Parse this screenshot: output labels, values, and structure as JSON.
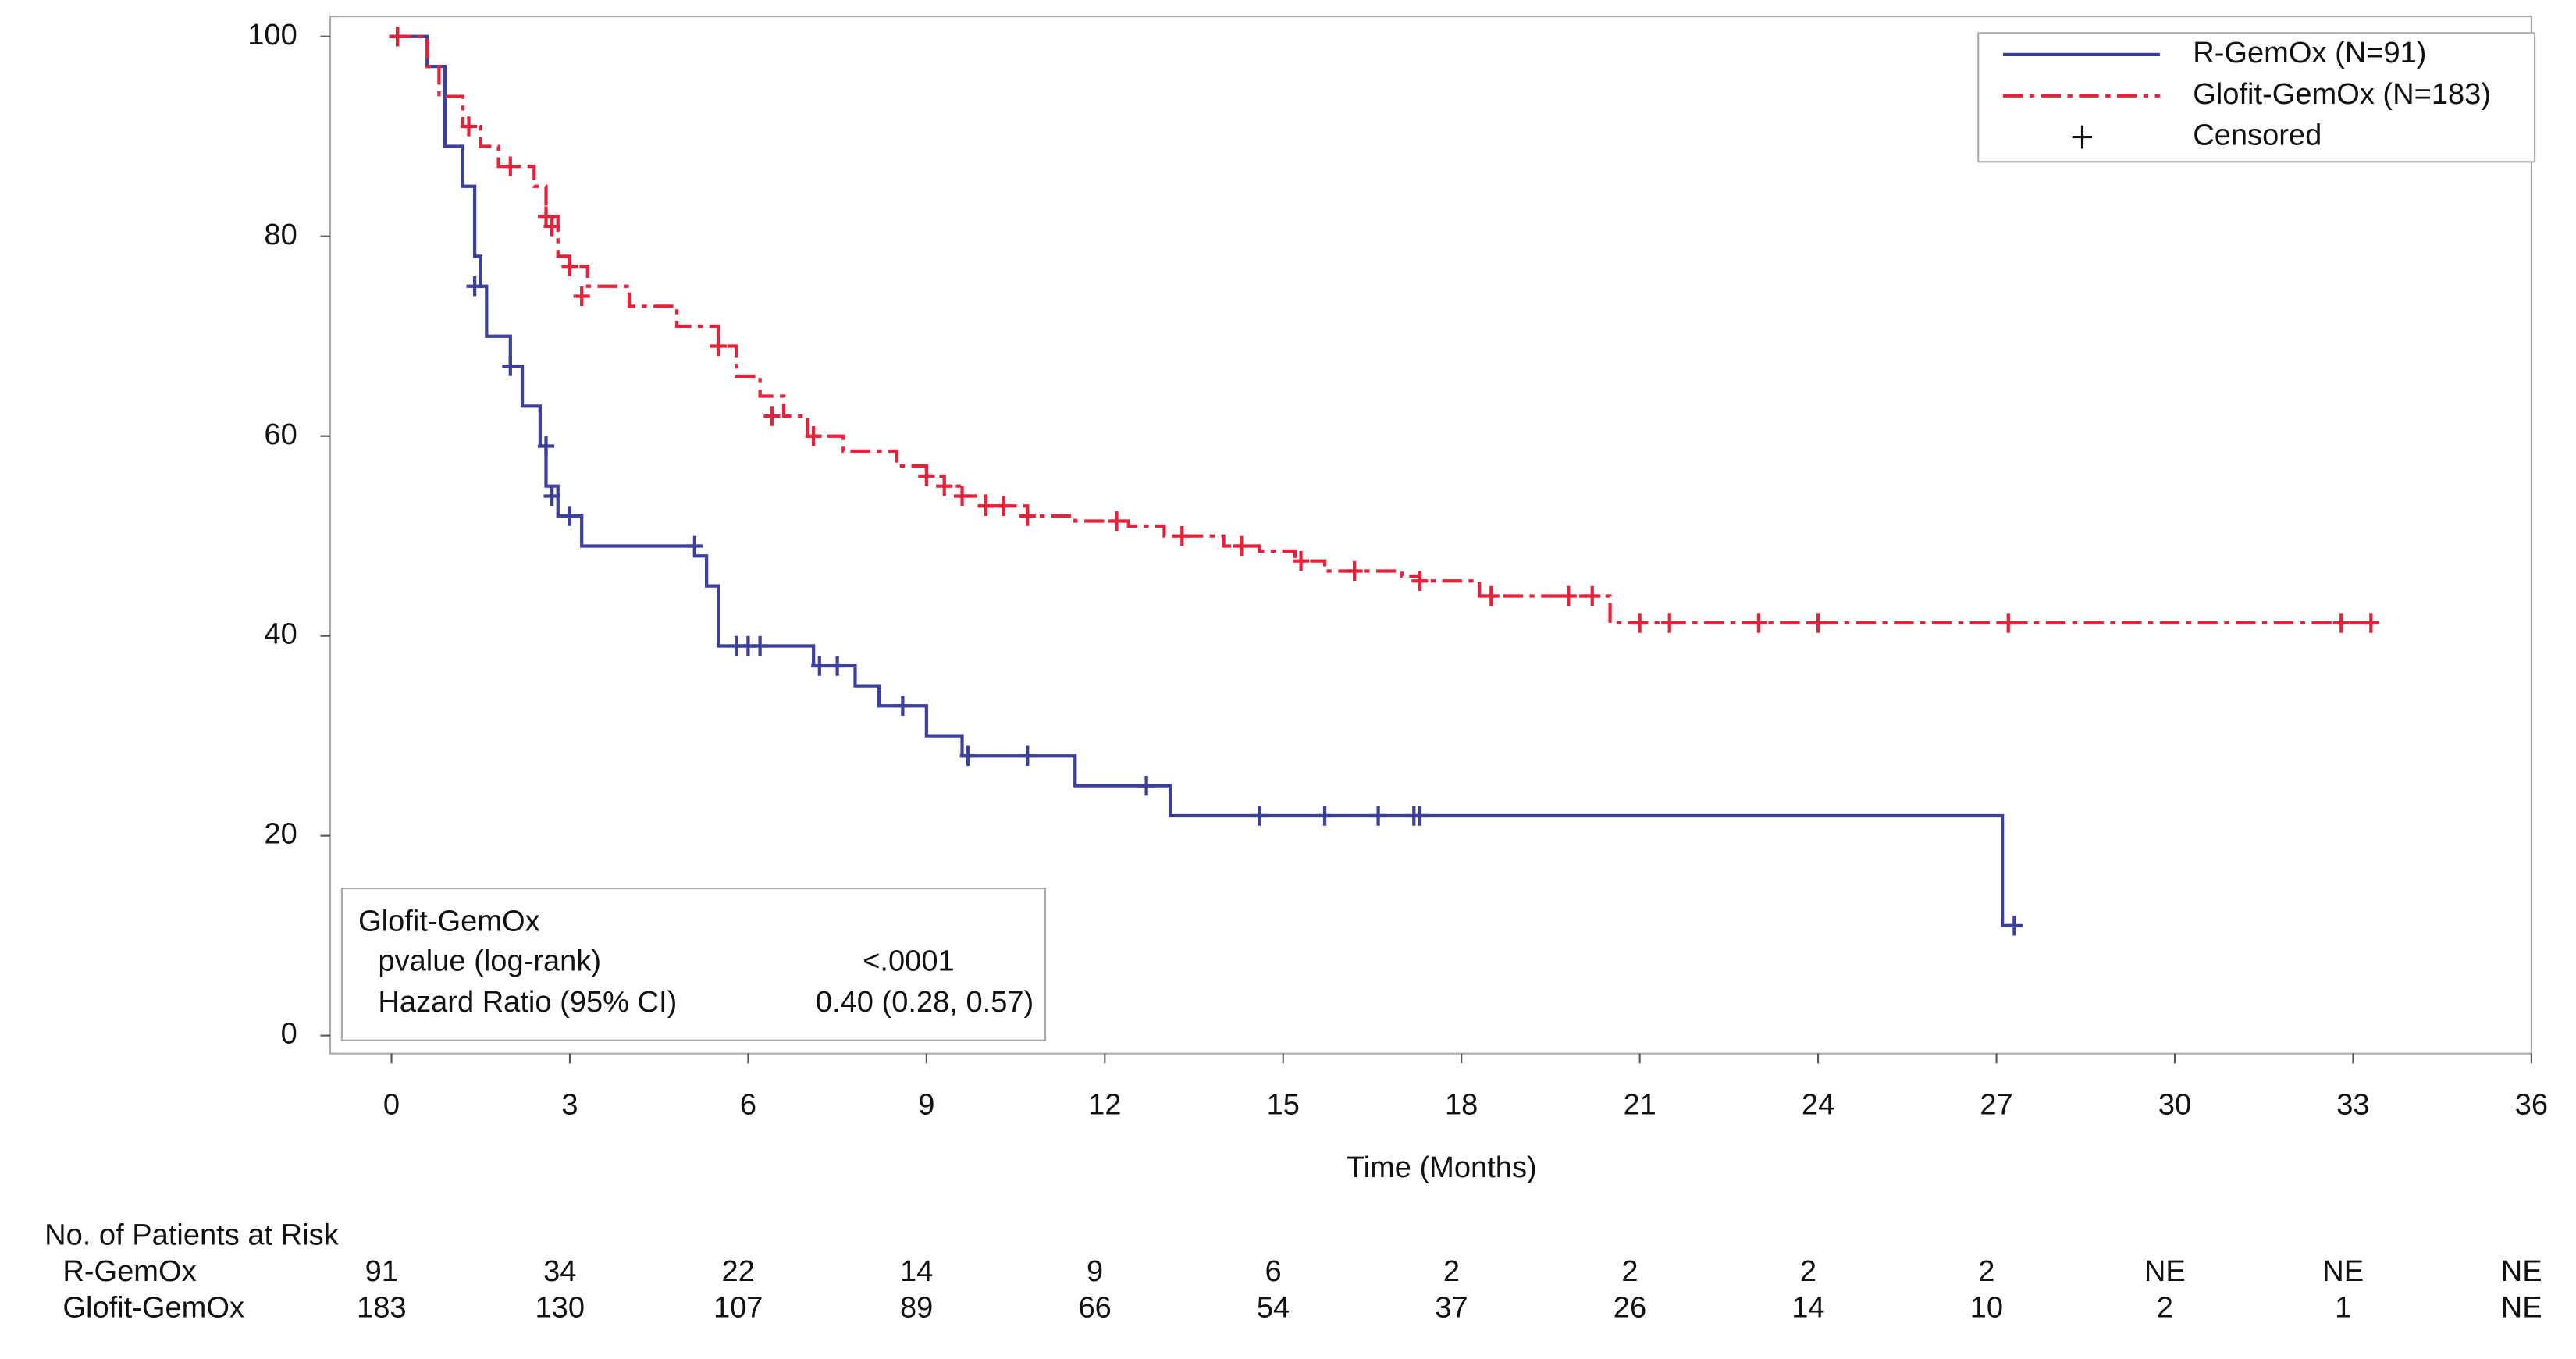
{
  "chart_data": {
    "type": "km",
    "x_label": "Time (Months)",
    "xlim": [
      -1.03,
      36
    ],
    "ylim": [
      -1.8,
      102
    ],
    "xticks": [
      0,
      3,
      6,
      9,
      12,
      15,
      18,
      21,
      24,
      27,
      30,
      33,
      36
    ],
    "yticks": [
      0,
      20,
      40,
      60,
      80,
      100
    ],
    "legend": "upper right",
    "censored_label": "Censored",
    "series": [
      {
        "name": "R-GemOx (N=91)",
        "color": "#3b3f9e",
        "dashed": false,
        "x": [
          0,
          0.6,
          0.9,
          1.2,
          1.4,
          1.5,
          1.6,
          2.0,
          2.2,
          2.5,
          2.6,
          2.8,
          3.2,
          5.1,
          5.3,
          5.5,
          7.1,
          7.8,
          8.2,
          9.0,
          9.6,
          11.5,
          13.1,
          27.1,
          27.3
        ],
        "values": [
          100,
          97,
          89,
          85,
          78,
          75,
          70,
          67,
          63,
          59,
          55,
          52,
          49,
          48,
          45,
          39,
          37,
          35,
          33,
          30,
          28,
          25,
          22,
          11,
          11
        ],
        "censor_x": [
          0.1,
          1.4,
          2.0,
          2.6,
          2.7,
          3.0,
          5.1,
          5.8,
          6.0,
          6.2,
          7.2,
          7.5,
          8.6,
          9.7,
          10.7,
          12.7,
          14.6,
          15.7,
          16.6,
          17.2,
          17.3,
          27.3
        ],
        "censor_values": [
          100,
          75,
          67,
          59,
          54,
          52,
          49,
          39,
          39,
          39,
          37,
          37,
          33,
          28,
          28,
          25,
          22,
          22,
          22,
          22,
          22,
          11
        ]
      },
      {
        "name": "Glofit-GemOx (N=183)",
        "color": "#e8213a",
        "dashed": true,
        "x": [
          0,
          0.6,
          0.8,
          1.2,
          1.5,
          1.8,
          2.4,
          2.6,
          2.8,
          3.0,
          3.3,
          4.0,
          4.8,
          5.5,
          5.8,
          6.2,
          6.6,
          7.0,
          7.6,
          8.5,
          9.0,
          9.3,
          9.6,
          10.0,
          10.7,
          11.5,
          12.4,
          13.0,
          14.0,
          14.6,
          15.2,
          15.7,
          17.0,
          17.3,
          18.3,
          20.5,
          33.4
        ],
        "values": [
          100,
          97,
          94,
          91,
          89,
          87,
          85,
          82,
          78,
          77,
          75,
          73,
          71,
          69,
          66,
          64,
          62,
          60,
          58.5,
          57,
          56,
          55,
          54,
          53,
          52,
          51.5,
          51,
          50,
          49,
          48.5,
          47.5,
          46.5,
          46,
          45.5,
          44,
          41.3,
          41.3
        ],
        "censor_x": [
          0.1,
          1.3,
          2.0,
          2.6,
          2.7,
          3.0,
          3.2,
          5.5,
          6.4,
          7.1,
          9.0,
          9.3,
          9.6,
          10.0,
          10.3,
          10.7,
          12.2,
          13.3,
          14.3,
          15.3,
          16.2,
          17.3,
          18.5,
          19.8,
          20.2,
          21.0,
          21.5,
          23.0,
          24.0,
          27.2,
          32.8,
          33.3
        ],
        "censor_values": [
          100,
          91,
          87,
          82,
          81,
          77,
          74,
          69,
          62,
          60,
          56,
          55,
          54,
          53,
          53,
          52,
          51.5,
          50,
          49,
          47.5,
          46.5,
          45.5,
          44,
          44,
          44,
          41.3,
          41.3,
          41.3,
          41.3,
          41.3,
          41.3,
          41.3
        ]
      }
    ],
    "stats": {
      "title": "Glofit-GemOx",
      "rows": [
        [
          "pvalue (log-rank)",
          "<.0001"
        ],
        [
          "Hazard Ratio (95% CI)",
          "0.40 (0.28, 0.57)"
        ]
      ]
    },
    "risk_table": {
      "title": "No. of Patients at Risk",
      "rows": [
        {
          "name": "R-GemOx",
          "values": [
            91,
            34,
            22,
            14,
            9,
            6,
            2,
            2,
            2,
            2,
            "NE",
            "NE",
            "NE"
          ]
        },
        {
          "name": "Glofit-GemOx",
          "values": [
            183,
            130,
            107,
            89,
            66,
            54,
            37,
            26,
            14,
            10,
            2,
            1,
            "NE"
          ]
        }
      ]
    }
  }
}
